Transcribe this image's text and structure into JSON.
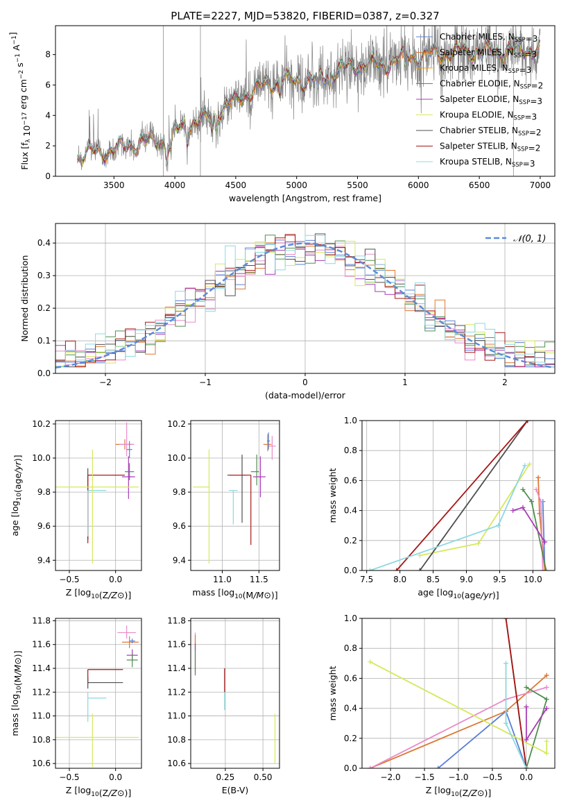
{
  "figure": {
    "title": "PLATE=2227, MJD=53820, FIBERID=0387, z=0.327"
  },
  "chart_data": [
    {
      "id": "spectrum",
      "type": "line",
      "xlabel": "wavelength [Angstrom, rest frame]",
      "ylabel": "Flux [f_λ 10^-17 erg cm^-2 s^-1 A^-1]",
      "xlim": [
        3020,
        7120
      ],
      "ylim": [
        0,
        9.9
      ],
      "xticks": [
        3500,
        4000,
        4500,
        5000,
        5500,
        6000,
        6500,
        7000
      ],
      "yticks": [
        0,
        2,
        4,
        6,
        8
      ],
      "grid": false,
      "legend_position": "top-right",
      "data_start": 3200,
      "data_end": 7000,
      "continuum_anchors": {
        "x": [
          3200,
          3350,
          3500,
          3600,
          3700,
          3800,
          3900,
          3950,
          4000,
          4100,
          4200,
          4300,
          4400,
          4500,
          4600,
          4700,
          4800,
          4900,
          5000,
          5100,
          5200,
          5300,
          5400,
          5500,
          5600,
          5700,
          5800,
          5900,
          6000,
          6200,
          6400,
          6600,
          6800,
          7000
        ],
        "y": [
          1.2,
          1.6,
          1.7,
          2.0,
          2.2,
          2.3,
          2.4,
          2.0,
          2.9,
          3.4,
          3.6,
          3.9,
          4.5,
          5.0,
          5.5,
          5.8,
          6.2,
          6.4,
          6.2,
          6.4,
          6.4,
          6.9,
          7.1,
          7.3,
          7.4,
          7.2,
          7.6,
          7.9,
          7.9,
          8.1,
          8.2,
          8.2,
          8.3,
          8.4
        ]
      },
      "absorption_lines": [
        3934,
        3968,
        4102,
        4305,
        4340,
        4861,
        5175,
        5270,
        5890
      ],
      "series": [
        {
          "name": "Chabrier MILES, N_SSP=3",
          "color": "#5b7fd6"
        },
        {
          "name": "Salpeter MILES, N_SSP=3",
          "color": "#dd7733"
        },
        {
          "name": "Kroupa MILES, N_SSP=3",
          "color": "#ff9900"
        },
        {
          "name": "Chabrier ELODIE, N_SSP=2",
          "color": "#4f8f4f"
        },
        {
          "name": "Salpeter ELODIE, N_SSP=3",
          "color": "#a83bb8"
        },
        {
          "name": "Kroupa ELODIE, N_SSP=3",
          "color": "#d6e85a"
        },
        {
          "name": "Chabrier STELIB, N_SSP=2",
          "color": "#4d4d4d"
        },
        {
          "name": "Salpeter STELIB, N_SSP=2",
          "color": "#a81515"
        },
        {
          "name": "Kroupa STELIB, N_SSP=3",
          "color": "#8cd8e0"
        }
      ],
      "data_color": "#808080"
    },
    {
      "id": "residuals",
      "type": "line",
      "xlabel": "(data-model)/error",
      "ylabel": "Normed distribution",
      "xlim": [
        -2.5,
        2.5
      ],
      "ylim": [
        0,
        0.46
      ],
      "xticks": [
        -2,
        -1,
        0,
        1,
        2
      ],
      "yticks": [
        0.0,
        0.1,
        0.2,
        0.3,
        0.4
      ],
      "grid": true,
      "legend": "𝒩(0, 1)",
      "gaussian_color": "#5b8bd8",
      "hist_bin_width": 0.1,
      "hist_colors": [
        "#5b7fd6",
        "#dd7733",
        "#e88bc7",
        "#4f8f4f",
        "#a83bb8",
        "#d6e85a",
        "#4d4d4d",
        "#a81515",
        "#8cd8e0"
      ]
    },
    {
      "id": "age_vs_z",
      "type": "scatter",
      "xlabel": "Z [log10(Z/Z⊙)]",
      "ylabel": "age  [log10(age/yr)]",
      "xlim": [
        -0.65,
        0.28
      ],
      "ylim": [
        9.34,
        10.22
      ],
      "xticks": [
        -0.5,
        0.0
      ],
      "yticks": [
        9.4,
        9.6,
        9.8,
        10.0,
        10.2
      ],
      "grid": true,
      "points": [
        {
          "name": "Salpeter MILES",
          "color": "#dd7733",
          "x": 0.1,
          "xerr": [
            0.1,
            0.1
          ],
          "y": 10.08,
          "yerr": [
            0.03,
            0.03
          ]
        },
        {
          "name": "Kroupa MILES",
          "color": "#e88bc7",
          "x": 0.12,
          "xerr": [
            0.08,
            0.08
          ],
          "y": 10.08,
          "yerr": [
            0.07,
            0.13
          ]
        },
        {
          "name": "Chabrier MILES",
          "color": "#5b7fd6",
          "x": 0.15,
          "xerr": [
            0.03,
            0.03
          ],
          "y": 10.05,
          "yerr": [
            0.05,
            0.05
          ]
        },
        {
          "name": "Chabrier ELODIE",
          "color": "#4f8f4f",
          "x": 0.15,
          "xerr": [
            0.05,
            0.05
          ],
          "y": 9.92,
          "yerr": [
            0.05,
            0.05
          ]
        },
        {
          "name": "Salpeter ELODIE",
          "color": "#a83bb8",
          "x": 0.14,
          "xerr": [
            0.07,
            0.07
          ],
          "y": 9.89,
          "yerr": [
            0.13,
            0.12
          ]
        },
        {
          "name": "Chabrier STELIB",
          "color": "#4d4d4d",
          "x": -0.3,
          "xerr": [
            0.0,
            0.39
          ],
          "y": 9.9,
          "yerr": [
            0.38,
            0.04
          ]
        },
        {
          "name": "Salpeter STELIB",
          "color": "#a81515",
          "x": -0.3,
          "xerr": [
            0.0,
            0.4
          ],
          "y": 9.9,
          "yerr": [
            0.4,
            0.0
          ]
        },
        {
          "name": "Kroupa STELIB",
          "color": "#8cd8e0",
          "x": -0.3,
          "xerr": [
            0.0,
            0.2
          ],
          "y": 9.81,
          "yerr": [
            0.27,
            0.0
          ]
        },
        {
          "name": "Kroupa ELODIE",
          "color": "#d6e85a",
          "x": -0.25,
          "xerr": [
            0.4,
            0.5
          ],
          "y": 9.83,
          "yerr": [
            0.45,
            0.22
          ]
        }
      ]
    },
    {
      "id": "age_vs_mass",
      "type": "scatter",
      "xlabel": "mass [log10(M/M⊙)]",
      "ylabel": "",
      "xlim": [
        10.57,
        11.78
      ],
      "ylim": [
        9.34,
        10.22
      ],
      "xticks": [
        11.0,
        11.5
      ],
      "yticks": [
        9.4,
        9.6,
        9.8,
        10.0,
        10.2
      ],
      "grid": true,
      "points": [
        {
          "name": "Salpeter MILES",
          "color": "#dd7733",
          "x": 11.62,
          "xerr": [
            0.06,
            0.05
          ],
          "y": 10.08,
          "yerr": [
            0.04,
            0.06
          ]
        },
        {
          "name": "Kroupa MILES",
          "color": "#e88bc7",
          "x": 11.68,
          "xerr": [
            0.05,
            0.05
          ],
          "y": 10.07,
          "yerr": [
            0.08,
            0.06
          ]
        },
        {
          "name": "Chabrier MILES",
          "color": "#5b7fd6",
          "x": 11.63,
          "xerr": [
            0.02,
            0.02
          ],
          "y": 10.1,
          "yerr": [
            0.05,
            0.05
          ]
        },
        {
          "name": "Chabrier ELODIE",
          "color": "#4f8f4f",
          "x": 11.47,
          "xerr": [
            0.08,
            0.03
          ],
          "y": 9.92,
          "yerr": [
            0.08,
            0.1
          ]
        },
        {
          "name": "Salpeter ELODIE",
          "color": "#a83bb8",
          "x": 11.52,
          "xerr": [
            0.1,
            0.07
          ],
          "y": 9.89,
          "yerr": [
            0.12,
            0.12
          ]
        },
        {
          "name": "Chabrier STELIB",
          "color": "#4d4d4d",
          "x": 11.27,
          "xerr": [
            0.2,
            0.06
          ],
          "y": 9.9,
          "yerr": [
            0.28,
            0.12
          ]
        },
        {
          "name": "Salpeter STELIB",
          "color": "#a81515",
          "x": 11.39,
          "xerr": [
            0.29,
            0.0
          ],
          "y": 9.9,
          "yerr": [
            0.41,
            0.0
          ]
        },
        {
          "name": "Kroupa STELIB",
          "color": "#8cd8e0",
          "x": 11.15,
          "xerr": [
            0.06,
            0.06
          ],
          "y": 9.81,
          "yerr": [
            0.2,
            0.0
          ]
        },
        {
          "name": "Kroupa ELODIE",
          "color": "#d6e85a",
          "x": 10.82,
          "xerr": [
            0.22,
            0.0
          ],
          "y": 9.83,
          "yerr": [
            0.45,
            0.22
          ]
        }
      ]
    },
    {
      "id": "weight_vs_age",
      "type": "line",
      "xlabel": "age  [log10(age/yr)]",
      "ylabel": "mass weight",
      "xlim": [
        7.43,
        10.33
      ],
      "ylim": [
        0,
        1.0
      ],
      "xticks": [
        7.5,
        8.0,
        8.5,
        9.0,
        9.5,
        10.0
      ],
      "yticks": [
        0.0,
        0.2,
        0.4,
        0.6,
        0.8,
        1.0
      ],
      "grid": true,
      "series": [
        {
          "name": "Chabrier MILES",
          "color": "#5b7fd6",
          "x": [
            10.15,
            10.18
          ],
          "y": [
            0.46,
            0.0
          ]
        },
        {
          "name": "Salpeter MILES",
          "color": "#dd7733",
          "x": [
            10.08,
            10.1,
            10.18
          ],
          "y": [
            0.62,
            0.38,
            0.0
          ]
        },
        {
          "name": "Kroupa MILES",
          "color": "#e88bc7",
          "x": [
            10.05,
            10.12,
            10.15
          ],
          "y": [
            0.54,
            0.46,
            0.0
          ]
        },
        {
          "name": "Chabrier ELODIE",
          "color": "#4f8f4f",
          "x": [
            9.85,
            9.98,
            10.2
          ],
          "y": [
            0.54,
            0.46,
            0.0
          ]
        },
        {
          "name": "Salpeter ELODIE",
          "color": "#a83bb8",
          "x": [
            9.7,
            9.85,
            10.18
          ],
          "y": [
            0.4,
            0.42,
            0.19
          ]
        },
        {
          "name": "Kroupa ELODIE",
          "color": "#d6e85a",
          "x": [
            8.3,
            9.18,
            9.95
          ],
          "y": [
            0.1,
            0.18,
            0.71
          ]
        },
        {
          "name": "Chabrier STELIB",
          "color": "#4d4d4d",
          "x": [
            8.3,
            9.92
          ],
          "y": [
            0.0,
            1.0
          ]
        },
        {
          "name": "Salpeter STELIB",
          "color": "#a81515",
          "x": [
            7.95,
            9.92
          ],
          "y": [
            0.0,
            1.0
          ]
        },
        {
          "name": "Kroupa STELIB",
          "color": "#8cd8e0",
          "x": [
            7.55,
            9.48,
            9.88
          ],
          "y": [
            0.0,
            0.3,
            0.7
          ]
        }
      ]
    },
    {
      "id": "mass_vs_z",
      "type": "scatter",
      "xlabel": "Z [log10(Z/Z⊙)]",
      "ylabel": "mass [log10(M/M⊙)]",
      "xlim": [
        -0.65,
        0.28
      ],
      "ylim": [
        10.56,
        11.82
      ],
      "xticks": [
        -0.5,
        0.0
      ],
      "yticks": [
        10.6,
        10.8,
        11.0,
        11.2,
        11.4,
        11.6,
        11.8
      ],
      "grid": true,
      "points": [
        {
          "name": "Kroupa MILES",
          "color": "#e88bc7",
          "x": 0.12,
          "xerr": [
            0.1,
            0.1
          ],
          "y": 11.7,
          "yerr": [
            0.05,
            0.06
          ]
        },
        {
          "name": "Salpeter MILES",
          "color": "#dd7733",
          "x": 0.15,
          "xerr": [
            0.08,
            0.1
          ],
          "y": 11.62,
          "yerr": [
            0.05,
            0.05
          ]
        },
        {
          "name": "Chabrier MILES",
          "color": "#5b7fd6",
          "x": 0.18,
          "xerr": [
            0.03,
            0.03
          ],
          "y": 11.63,
          "yerr": [
            0.02,
            0.02
          ]
        },
        {
          "name": "Salpeter ELODIE",
          "color": "#a83bb8",
          "x": 0.18,
          "xerr": [
            0.06,
            0.06
          ],
          "y": 11.51,
          "yerr": [
            0.05,
            0.05
          ]
        },
        {
          "name": "Chabrier ELODIE",
          "color": "#4f8f4f",
          "x": 0.18,
          "xerr": [
            0.06,
            0.06
          ],
          "y": 11.47,
          "yerr": [
            0.06,
            0.06
          ]
        },
        {
          "name": "Salpeter STELIB",
          "color": "#a81515",
          "x": -0.3,
          "xerr": [
            0.0,
            0.38
          ],
          "y": 11.39,
          "yerr": [
            0.12,
            0.0
          ]
        },
        {
          "name": "Chabrier STELIB",
          "color": "#4d4d4d",
          "x": -0.3,
          "xerr": [
            0.0,
            0.38
          ],
          "y": 11.28,
          "yerr": [
            0.05,
            0.05
          ]
        },
        {
          "name": "Kroupa STELIB",
          "color": "#8cd8e0",
          "x": -0.3,
          "xerr": [
            0.0,
            0.2
          ],
          "y": 11.15,
          "yerr": [
            0.2,
            0.05
          ]
        },
        {
          "name": "Kroupa ELODIE",
          "color": "#d6e85a",
          "x": -0.25,
          "xerr": [
            0.4,
            0.5
          ],
          "y": 10.82,
          "yerr": [
            0.25,
            0.2
          ]
        }
      ]
    },
    {
      "id": "mass_vs_ebv",
      "type": "scatter",
      "xlabel": "E(B-V)",
      "ylabel": "",
      "xlim": [
        0.02,
        0.61
      ],
      "ylim": [
        10.56,
        11.82
      ],
      "xticks": [
        0.25,
        0.5
      ],
      "yticks": [
        10.6,
        10.8,
        11.0,
        11.2,
        11.4,
        11.6,
        11.8
      ],
      "grid": true,
      "points": [
        {
          "name": "Kroupa MILES",
          "color": "#e88bc7",
          "x": 0.05,
          "xerr": [
            0.0,
            0.0
          ],
          "y": 11.62,
          "yerr": [
            0.08,
            0.08
          ]
        },
        {
          "name": "Salpeter MILES",
          "color": "#dd7733",
          "x": 0.05,
          "xerr": [
            0.0,
            0.0
          ],
          "y": 11.62,
          "yerr": [
            0.06,
            0.06
          ]
        },
        {
          "name": "Salpeter ELODIE",
          "color": "#a83bb8",
          "x": 0.05,
          "xerr": [
            0.0,
            0.0
          ],
          "y": 11.51,
          "yerr": [
            0.15,
            0.1
          ]
        },
        {
          "name": "Chabrier ELODIE",
          "color": "#4f8f4f",
          "x": 0.05,
          "xerr": [
            0.0,
            0.0
          ],
          "y": 11.47,
          "yerr": [
            0.13,
            0.1
          ]
        },
        {
          "name": "Salpeter STELIB",
          "color": "#a81515",
          "x": 0.245,
          "xerr": [
            0.0,
            0.0
          ],
          "y": 11.3,
          "yerr": [
            0.1,
            0.1
          ]
        },
        {
          "name": "Kroupa STELIB",
          "color": "#8cd8e0",
          "x": 0.245,
          "xerr": [
            0.0,
            0.0
          ],
          "y": 11.15,
          "yerr": [
            0.1,
            0.05
          ]
        },
        {
          "name": "Kroupa ELODIE",
          "color": "#d6e85a",
          "x": 0.58,
          "xerr": [
            0.0,
            0.0
          ],
          "y": 10.82,
          "yerr": [
            0.22,
            0.2
          ]
        }
      ]
    },
    {
      "id": "weight_vs_z",
      "type": "line",
      "xlabel": "Z [log10(Z/Z⊙)]",
      "ylabel": "mass weight",
      "xlim": [
        -2.42,
        0.42
      ],
      "ylim": [
        0,
        1.0
      ],
      "xticks": [
        -2.0,
        -1.5,
        -1.0,
        -0.5,
        0.0
      ],
      "yticks": [
        0.0,
        0.2,
        0.4,
        0.6,
        0.8,
        1.0
      ],
      "grid": true,
      "series": [
        {
          "name": "Chabrier MILES",
          "color": "#5b7fd6",
          "x": [
            -1.3,
            -0.3,
            0.0
          ],
          "y": [
            0.0,
            0.38,
            0.0
          ]
        },
        {
          "name": "Salpeter MILES",
          "color": "#dd7733",
          "x": [
            -2.3,
            -0.3,
            0.3
          ],
          "y": [
            0.0,
            0.38,
            0.62
          ]
        },
        {
          "name": "Kroupa MILES",
          "color": "#e88bc7",
          "x": [
            -2.3,
            -0.3,
            0.3
          ],
          "y": [
            0.0,
            0.46,
            0.54
          ]
        },
        {
          "name": "Chabrier ELODIE",
          "color": "#4f8f4f",
          "x": [
            0.0,
            0.3,
            0.0
          ],
          "y": [
            0.54,
            0.46,
            0.0
          ]
        },
        {
          "name": "Salpeter ELODIE",
          "color": "#a83bb8",
          "x": [
            0.3,
            0.0,
            0.0
          ],
          "y": [
            0.4,
            0.19,
            0.41
          ]
        },
        {
          "name": "Kroupa ELODIE",
          "color": "#d6e85a",
          "x": [
            -2.3,
            0.3,
            0.3
          ],
          "y": [
            0.71,
            0.1,
            0.18
          ]
        },
        {
          "name": "Chabrier STELIB",
          "color": "#4d4d4d",
          "x": [
            -0.3,
            0.0
          ],
          "y": [
            1.0,
            0.0
          ]
        },
        {
          "name": "Salpeter STELIB",
          "color": "#a81515",
          "x": [
            -0.3,
            0.0
          ],
          "y": [
            1.0,
            0.0
          ]
        },
        {
          "name": "Kroupa STELIB",
          "color": "#8cd8e0",
          "x": [
            -0.3,
            -0.3,
            0.0
          ],
          "y": [
            0.7,
            0.3,
            0.0
          ]
        }
      ]
    }
  ]
}
